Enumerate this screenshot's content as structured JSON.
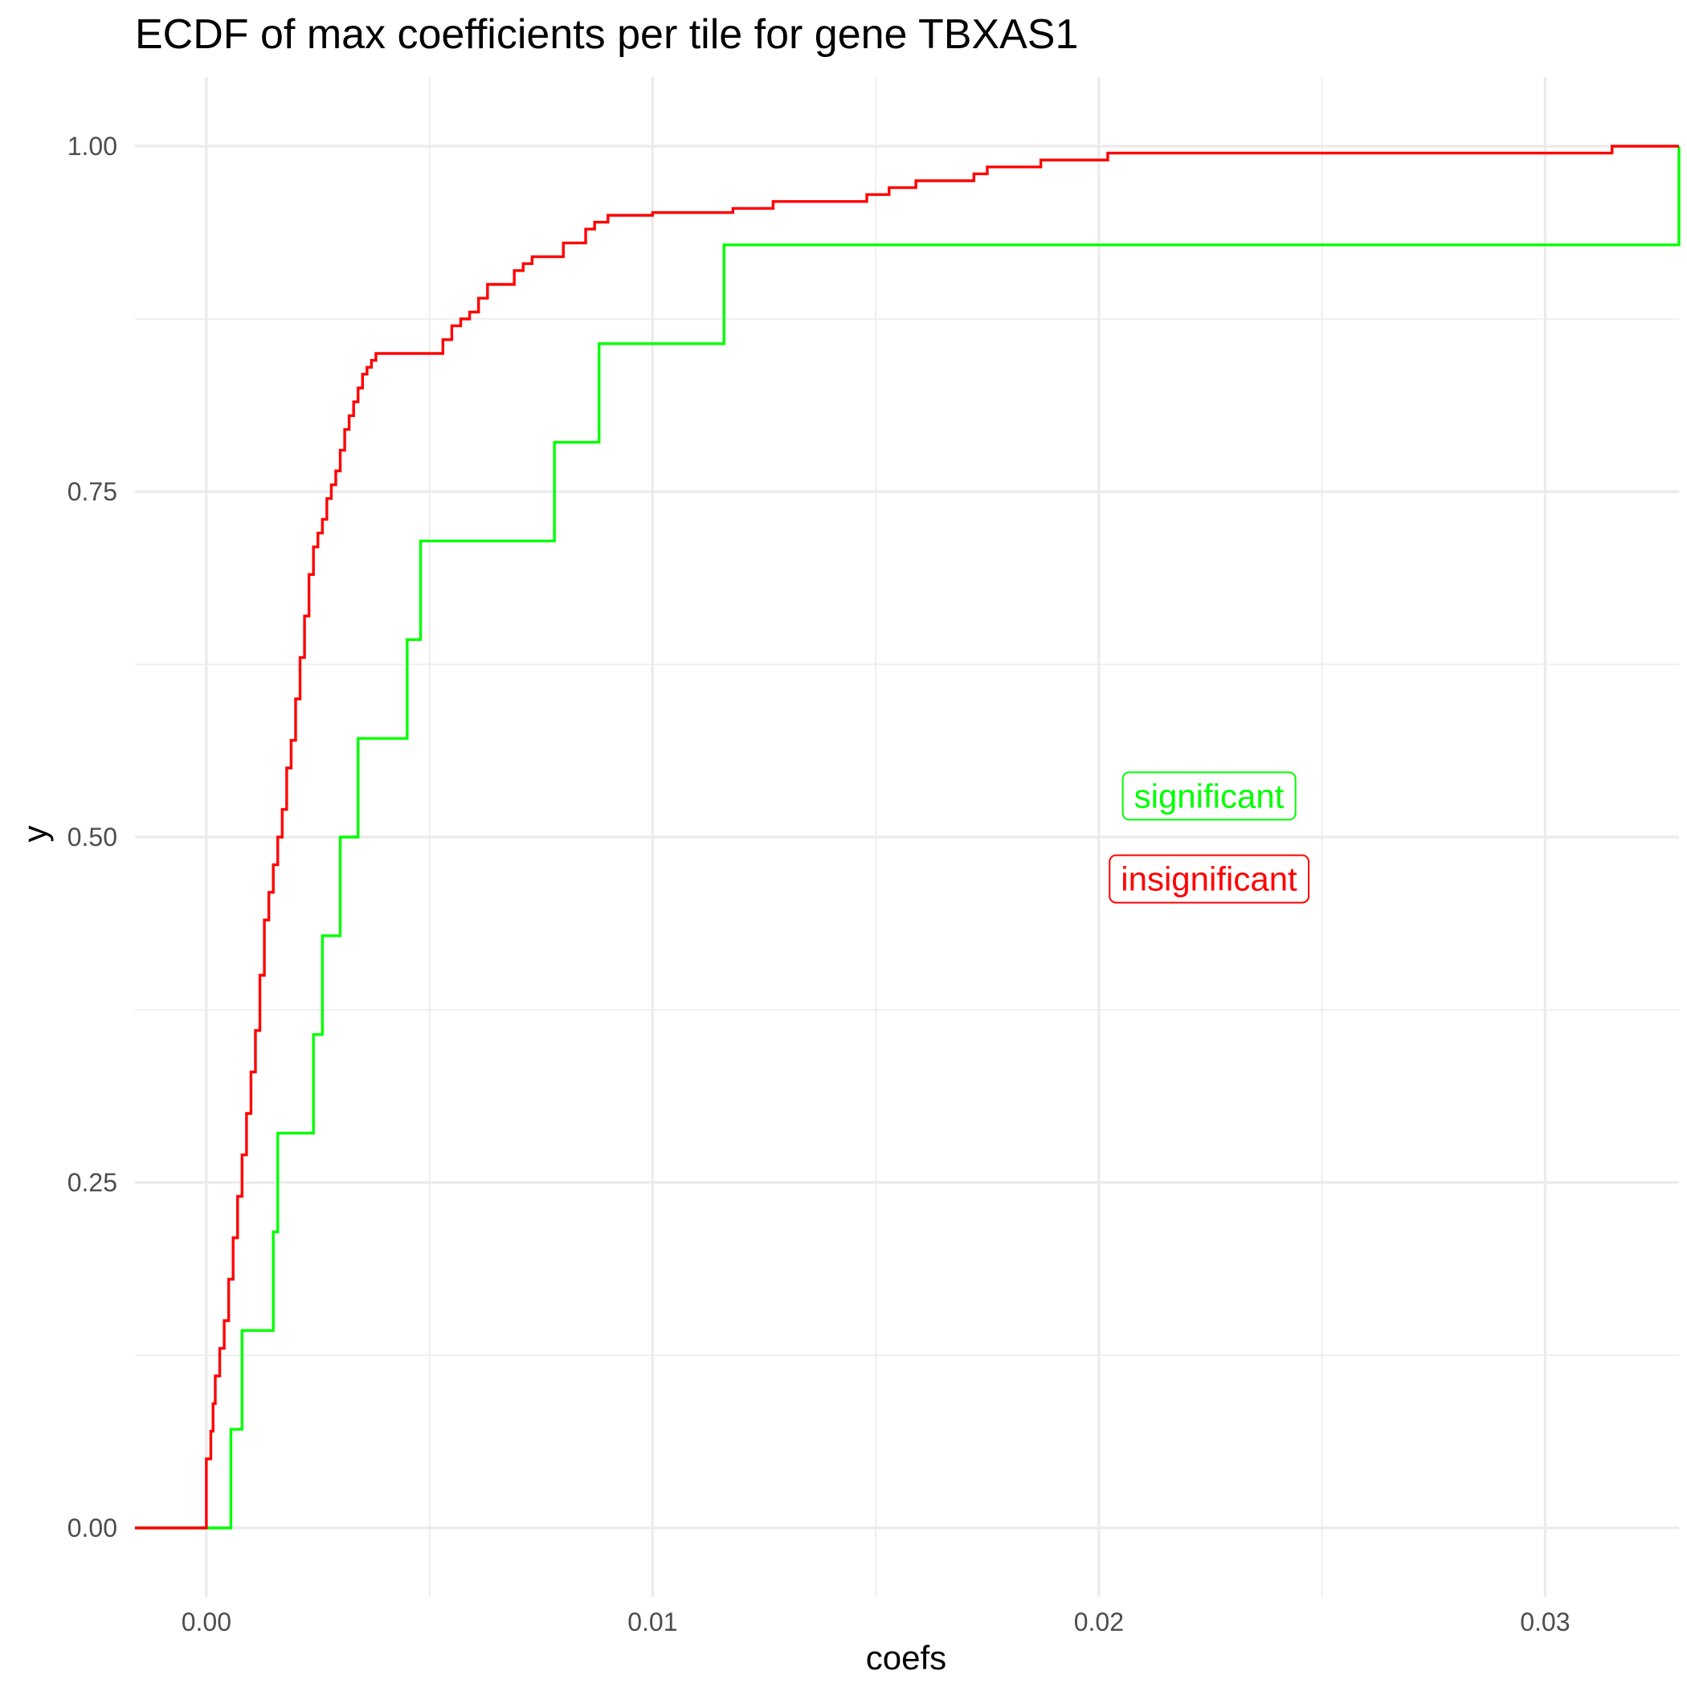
{
  "chart_data": {
    "type": "line",
    "title": "ECDF of max coefficients per tile for gene TBXAS1",
    "xlabel": "coefs",
    "ylabel": "y",
    "xlim": [
      -0.0016,
      0.033
    ],
    "ylim": [
      -0.05,
      1.05
    ],
    "x_ticks": [
      0.0,
      0.01,
      0.02,
      0.03
    ],
    "x_tick_labels": [
      "0.00",
      "0.01",
      "0.02",
      "0.03"
    ],
    "y_ticks": [
      0.0,
      0.25,
      0.5,
      0.75,
      1.0
    ],
    "y_tick_labels": [
      "0.00",
      "0.25",
      "0.50",
      "0.75",
      "1.00"
    ],
    "grid": true,
    "series": [
      {
        "name": "significant",
        "color": "#00ff00",
        "step": true,
        "x": [
          -0.0016,
          0.00055,
          0.0008,
          0.0015,
          0.0016,
          0.0024,
          0.0026,
          0.003,
          0.0034,
          0.0045,
          0.0048,
          0.0078,
          0.0088,
          0.0116,
          0.033
        ],
        "y": [
          0.0,
          0.0714,
          0.1429,
          0.2143,
          0.2857,
          0.3571,
          0.4286,
          0.5,
          0.5714,
          0.6429,
          0.7143,
          0.7857,
          0.8571,
          0.9286,
          1.0
        ]
      },
      {
        "name": "insignificant",
        "color": "#ff0000",
        "step": true,
        "x": [
          -0.0016,
          0.0,
          0.0001,
          0.00015,
          0.0002,
          0.0003,
          0.0004,
          0.0005,
          0.0006,
          0.0007,
          0.0008,
          0.0009,
          0.001,
          0.0011,
          0.0012,
          0.0013,
          0.0014,
          0.0015,
          0.0016,
          0.0017,
          0.0018,
          0.0019,
          0.002,
          0.0021,
          0.0022,
          0.0023,
          0.0024,
          0.0025,
          0.0026,
          0.0027,
          0.0028,
          0.0029,
          0.003,
          0.0031,
          0.0032,
          0.0033,
          0.0034,
          0.0035,
          0.0036,
          0.0037,
          0.0038,
          0.004,
          0.0042,
          0.0044,
          0.0046,
          0.0053,
          0.0055,
          0.0057,
          0.0059,
          0.0061,
          0.0063,
          0.0065,
          0.0069,
          0.0071,
          0.0073,
          0.008,
          0.0085,
          0.0087,
          0.009,
          0.01,
          0.0118,
          0.0127,
          0.0148,
          0.0153,
          0.0159,
          0.0172,
          0.0175,
          0.0184,
          0.0187,
          0.0202,
          0.0315
        ],
        "y": [
          0.0,
          0.05,
          0.07,
          0.09,
          0.11,
          0.13,
          0.15,
          0.18,
          0.21,
          0.24,
          0.27,
          0.3,
          0.33,
          0.36,
          0.4,
          0.44,
          0.46,
          0.48,
          0.5,
          0.52,
          0.55,
          0.57,
          0.6,
          0.63,
          0.66,
          0.69,
          0.71,
          0.72,
          0.73,
          0.745,
          0.755,
          0.765,
          0.78,
          0.795,
          0.805,
          0.815,
          0.825,
          0.835,
          0.84,
          0.845,
          0.85,
          0.85,
          0.85,
          0.85,
          0.85,
          0.86,
          0.87,
          0.875,
          0.88,
          0.89,
          0.9,
          0.9,
          0.91,
          0.915,
          0.92,
          0.93,
          0.94,
          0.945,
          0.95,
          0.952,
          0.955,
          0.96,
          0.965,
          0.97,
          0.975,
          0.98,
          0.985,
          0.985,
          0.99,
          0.995,
          1.0
        ]
      }
    ],
    "legend": {
      "placement": "right-center",
      "entries": [
        "significant",
        "insignificant"
      ]
    }
  }
}
